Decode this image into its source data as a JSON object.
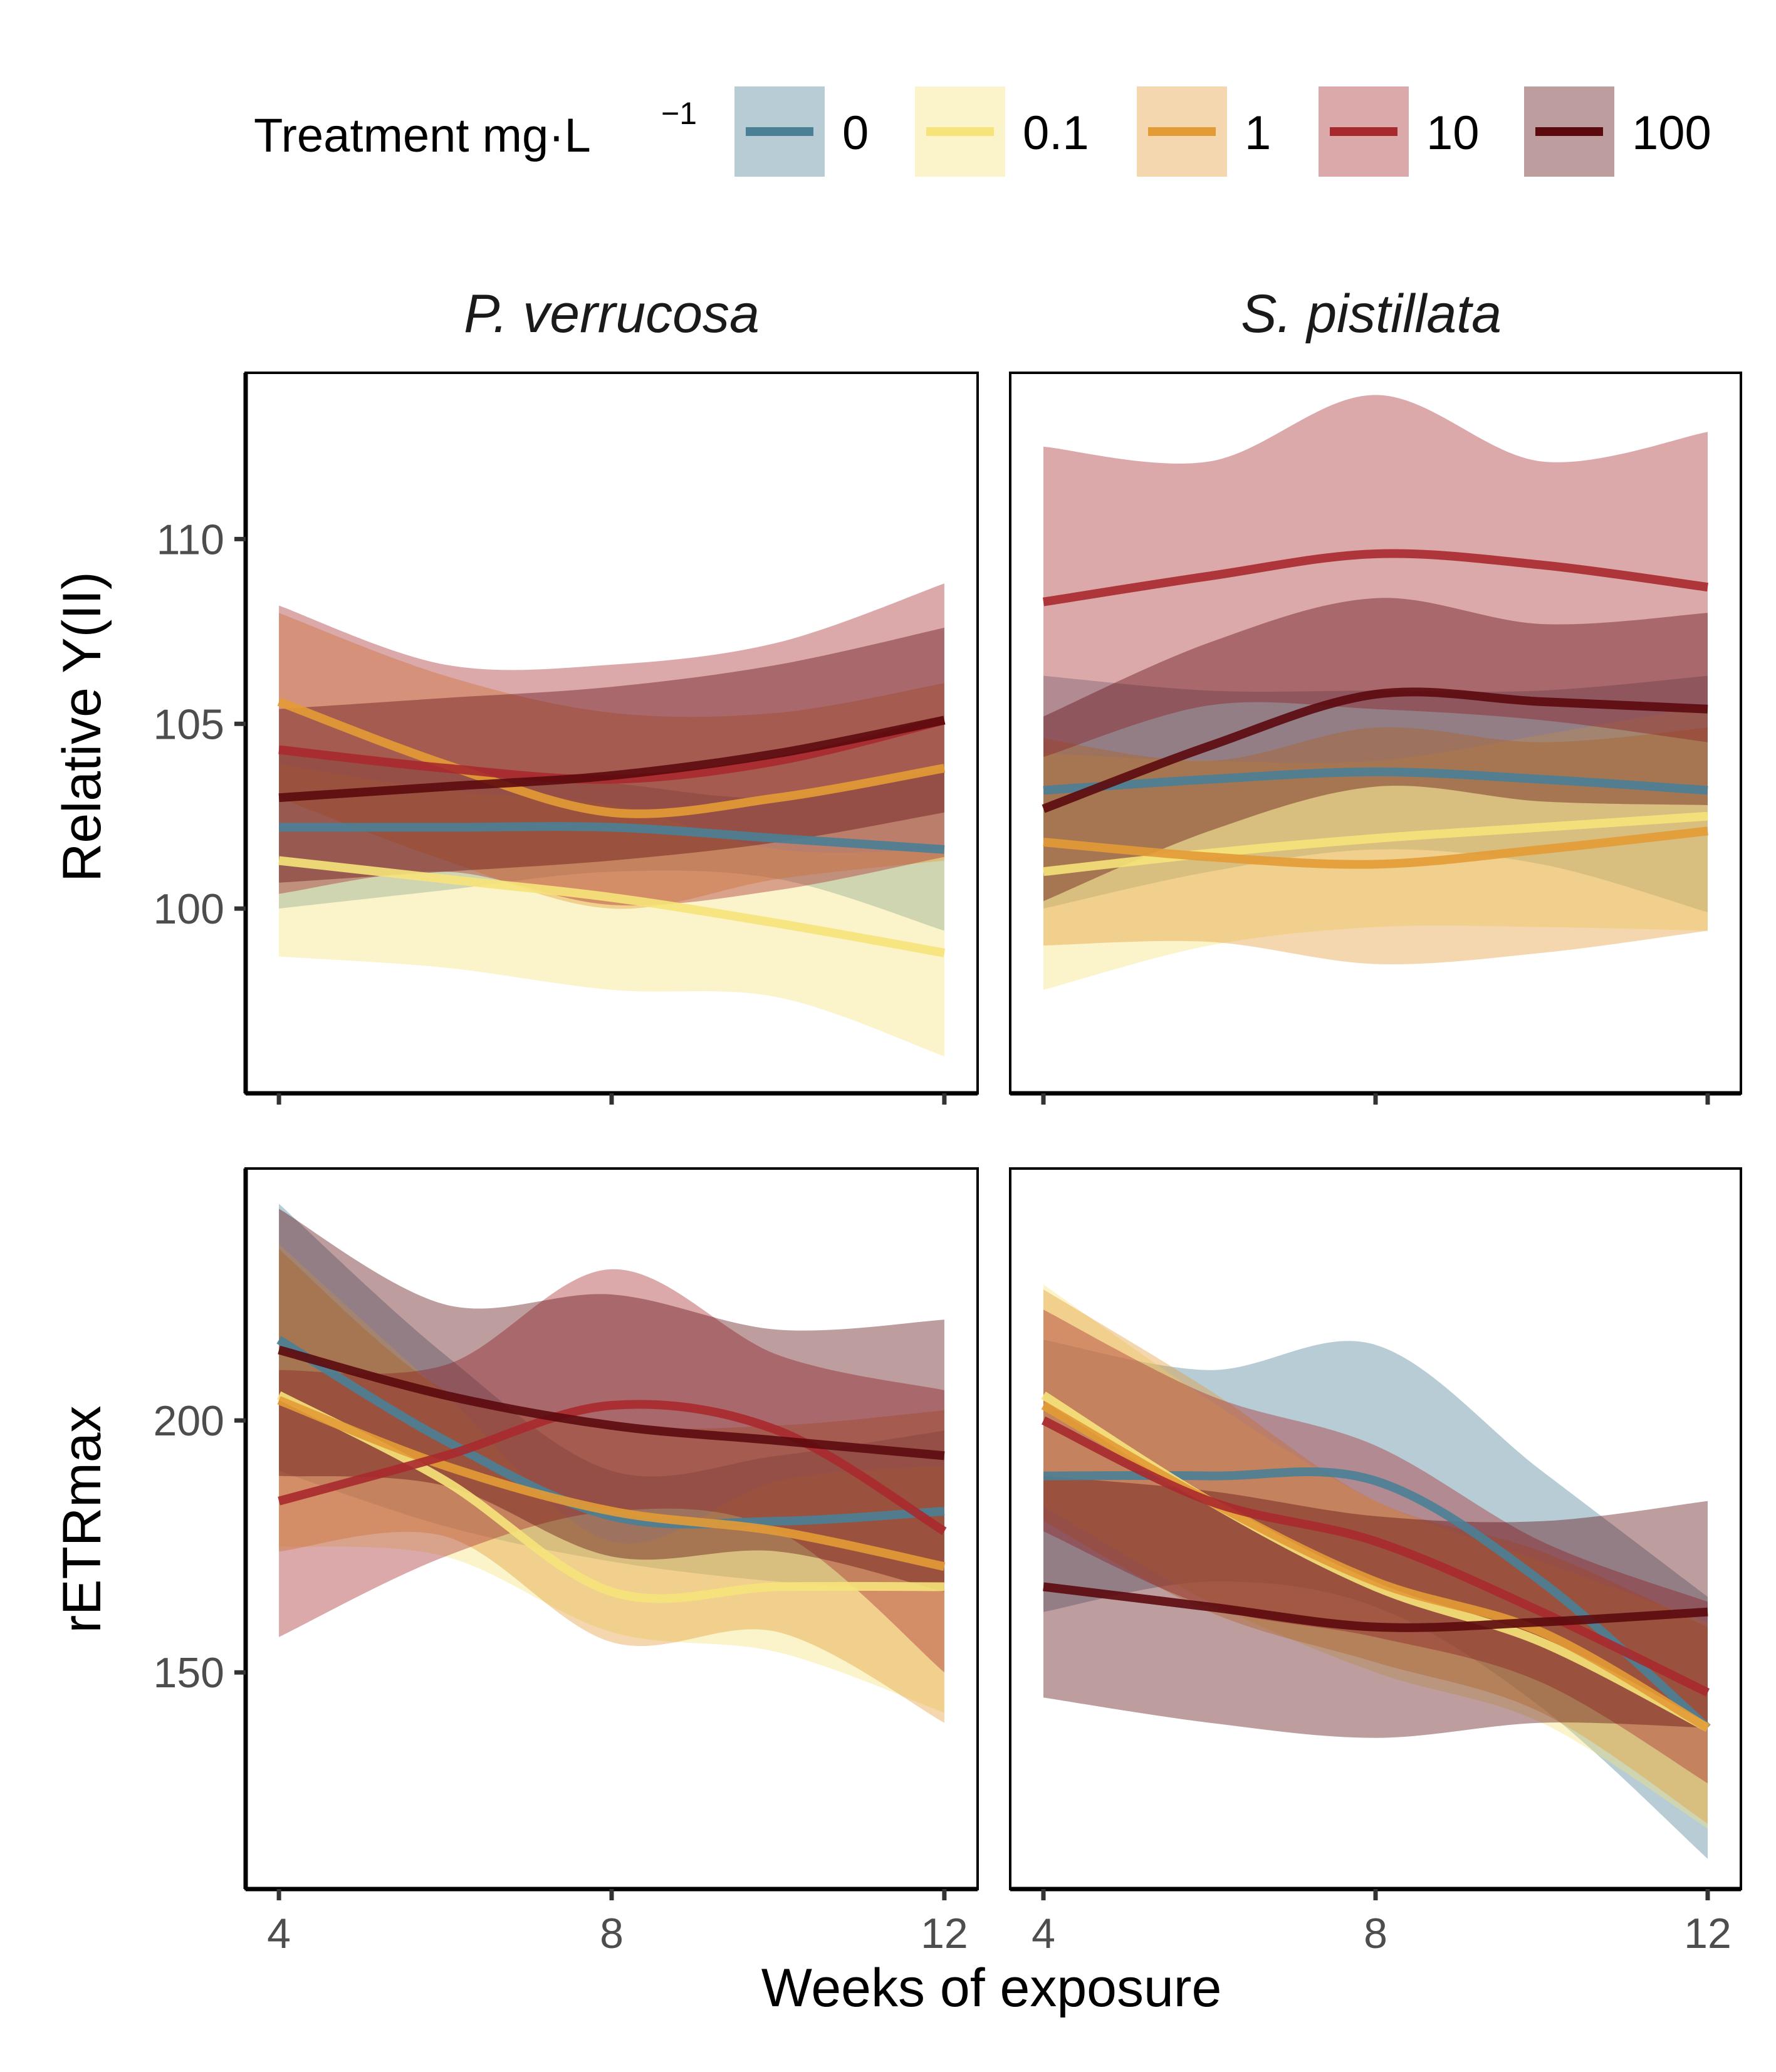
{
  "chart_data": {
    "type": "line",
    "legend": {
      "title": "Treatment mg·L",
      "title_superscript": "−1",
      "position": "top",
      "entries": [
        {
          "label": "0",
          "color": "#4a7f96"
        },
        {
          "label": "0.1",
          "color": "#f6e37a"
        },
        {
          "label": "1",
          "color": "#e39b35"
        },
        {
          "label": "10",
          "color": "#a8292d"
        },
        {
          "label": "100",
          "color": "#5c0a0e"
        }
      ]
    },
    "xlabel": "Weeks of exposure",
    "x_ticks": [
      "4",
      "8",
      "12"
    ],
    "x": [
      4,
      6,
      8,
      10,
      12
    ],
    "xlim": [
      3.6,
      12.4
    ],
    "grid": false,
    "rows": [
      {
        "ylabel": "Relative Y(II)",
        "ylim": [
          95,
          114.5
        ],
        "y_ticks": [
          100,
          105,
          110
        ],
        "y_tick_labels": [
          "100",
          "105",
          "110"
        ]
      },
      {
        "ylabel": "rETRmax",
        "ylim": [
          107,
          250
        ],
        "y_ticks": [
          150,
          200
        ],
        "y_tick_labels": [
          "150",
          "200"
        ]
      }
    ],
    "facets": [
      "P. verrucosa",
      "S. pistillata"
    ],
    "panels": [
      {
        "facet": "P. verrucosa",
        "ylabel": "Relative Y(II)",
        "series": [
          {
            "name": "0",
            "y": [
              102.2,
              102.2,
              102.2,
              101.9,
              101.6
            ],
            "lower": [
              100.0,
              100.5,
              101.0,
              100.8,
              99.4
            ],
            "upper": [
              104.4,
              103.9,
              103.4,
              103.0,
              103.8
            ]
          },
          {
            "name": "0.1",
            "y": [
              101.3,
              100.8,
              100.3,
              99.6,
              98.8
            ],
            "lower": [
              98.7,
              98.4,
              97.8,
              97.6,
              96.0
            ],
            "upper": [
              103.9,
              103.2,
              102.8,
              101.6,
              101.6
            ]
          },
          {
            "name": "1",
            "y": [
              105.6,
              103.9,
              102.6,
              103.0,
              103.8
            ],
            "lower": [
              103.0,
              101.3,
              100.0,
              100.8,
              101.3
            ],
            "upper": [
              108.0,
              106.3,
              105.3,
              105.3,
              106.1
            ]
          },
          {
            "name": "10",
            "y": [
              104.3,
              103.8,
              103.5,
              104.0,
              105.1
            ],
            "lower": [
              100.4,
              101.0,
              100.1,
              100.5,
              101.4
            ],
            "upper": [
              108.2,
              106.6,
              106.6,
              107.2,
              108.8
            ]
          },
          {
            "name": "100",
            "y": [
              103.0,
              103.3,
              103.6,
              104.2,
              105.1
            ],
            "lower": [
              100.7,
              101.0,
              101.3,
              101.8,
              102.6
            ],
            "upper": [
              105.4,
              105.7,
              106.0,
              106.6,
              107.6
            ]
          }
        ]
      },
      {
        "facet": "S. pistillata",
        "ylabel": "Relative Y(II)",
        "series": [
          {
            "name": "0",
            "y": [
              103.2,
              103.5,
              103.7,
              103.5,
              103.2
            ],
            "lower": [
              100.0,
              101.0,
              101.6,
              101.2,
              99.9
            ],
            "upper": [
              106.3,
              105.9,
              105.9,
              105.9,
              106.3
            ]
          },
          {
            "name": "0.1",
            "y": [
              101.0,
              101.5,
              101.9,
              102.2,
              102.5
            ],
            "lower": [
              97.8,
              99.0,
              99.5,
              99.5,
              99.4
            ],
            "upper": [
              104.2,
              104.0,
              104.0,
              104.7,
              105.5
            ]
          },
          {
            "name": "1",
            "y": [
              101.8,
              101.4,
              101.2,
              101.6,
              102.1
            ],
            "lower": [
              99.0,
              99.1,
              98.5,
              98.8,
              99.4
            ],
            "upper": [
              104.6,
              104.0,
              104.9,
              104.5,
              104.9
            ]
          },
          {
            "name": "10",
            "y": [
              108.3,
              109.0,
              109.6,
              109.3,
              108.7
            ],
            "lower": [
              104.1,
              105.5,
              105.4,
              105.1,
              104.5
            ],
            "upper": [
              112.5,
              112.1,
              113.9,
              112.1,
              112.9
            ]
          },
          {
            "name": "100",
            "y": [
              102.7,
              104.4,
              105.8,
              105.6,
              105.4
            ],
            "lower": [
              100.2,
              102.1,
              103.3,
              102.9,
              102.8
            ],
            "upper": [
              105.2,
              107.2,
              108.4,
              107.7,
              108.0
            ]
          }
        ]
      },
      {
        "facet": "P. verrucosa",
        "ylabel": "rETRmax",
        "series": [
          {
            "name": "0",
            "y": [
              216,
              196,
              181,
              180,
              182
            ],
            "lower": [
              190,
              179,
              172,
              168,
              166
            ],
            "upper": [
              243,
              213,
              190,
              193,
              198
            ]
          },
          {
            "name": "0.1",
            "y": [
              205,
              188,
              166,
              167,
              167
            ],
            "lower": [
              175,
              173,
              158,
              154,
              142
            ],
            "upper": [
              235,
              205,
              176,
              188,
              191
            ]
          },
          {
            "name": "1",
            "y": [
              204,
              191,
              182,
              178,
              171
            ],
            "lower": [
              174,
              177,
              156,
              158,
              140
            ],
            "upper": [
              234,
              206,
              199,
              199,
              202
            ]
          },
          {
            "name": "10",
            "y": [
              184,
              193,
              203,
              198,
              178
            ],
            "lower": [
              157,
              173,
              182,
              178,
              150
            ],
            "upper": [
              210,
              211,
              230,
              213,
              206
            ]
          },
          {
            "name": "100",
            "y": [
              214,
              205,
              199,
              196,
              193
            ],
            "lower": [
              189,
              187,
              173,
              174,
              166
            ],
            "upper": [
              242,
              223,
              225,
              218,
              220
            ]
          }
        ]
      },
      {
        "facet": "S. pistillata",
        "ylabel": "rETRmax",
        "series": [
          {
            "name": "0",
            "y": [
              189,
              189,
              188,
              168,
              139
            ],
            "lower": [
              162,
              168,
              163,
              143,
              113
            ],
            "upper": [
              216,
              210,
              215,
              190,
              165
            ]
          },
          {
            "name": "0.1",
            "y": [
              205,
              184,
              167,
              156,
              139
            ],
            "lower": [
              183,
              164,
              150,
              140,
              119
            ],
            "upper": [
              227,
              204,
              184,
              172,
              160
            ]
          },
          {
            "name": "1",
            "y": [
              203,
              184,
              168,
              158,
              139
            ],
            "lower": [
              180,
              162,
              152,
              142,
              120
            ],
            "upper": [
              226,
              206,
              184,
              174,
              159
            ]
          },
          {
            "name": "10",
            "y": [
              200,
              184,
              176,
              162,
              146
            ],
            "lower": [
              178,
              163,
              157,
              148,
              128
            ],
            "upper": [
              222,
              205,
              195,
              176,
              164
            ]
          },
          {
            "name": "100",
            "y": [
              167,
              163,
              159,
              160,
              162
            ],
            "lower": [
              145,
              140,
              137,
              140,
              139
            ],
            "upper": [
              189,
              186,
              181,
              180,
              184
            ]
          }
        ]
      }
    ]
  }
}
